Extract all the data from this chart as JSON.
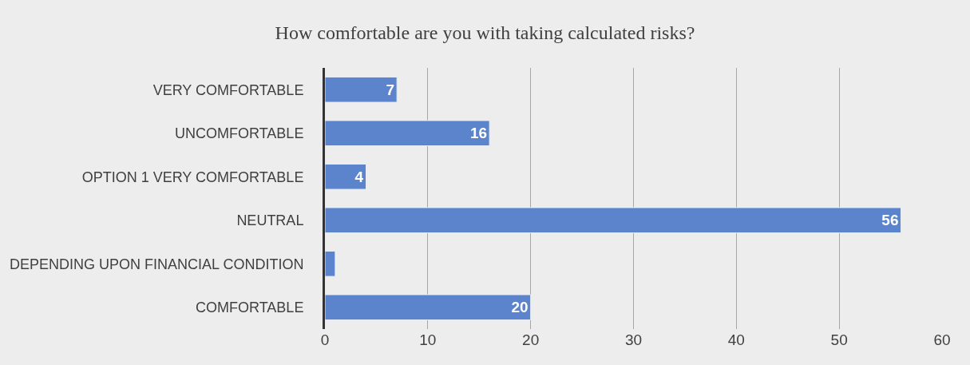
{
  "chart_data": {
    "type": "bar",
    "orientation": "horizontal",
    "title": "How comfortable are you with taking calculated risks?",
    "categories": [
      "VERY COMFORTABLE",
      "UNCOMFORTABLE",
      "OPTION 1 VERY COMFORTABLE",
      "NEUTRAL",
      "DEPENDING UPON FINANCIAL CONDITION",
      "COMFORTABLE"
    ],
    "values": [
      7,
      16,
      4,
      56,
      1,
      20
    ],
    "value_labels": [
      "7",
      "16",
      "4",
      "56",
      null,
      "20"
    ],
    "color": "#5b84cc",
    "xlim": [
      0,
      60
    ],
    "xticks": [
      0,
      10,
      20,
      30,
      40,
      50,
      60
    ],
    "grid": "x"
  }
}
